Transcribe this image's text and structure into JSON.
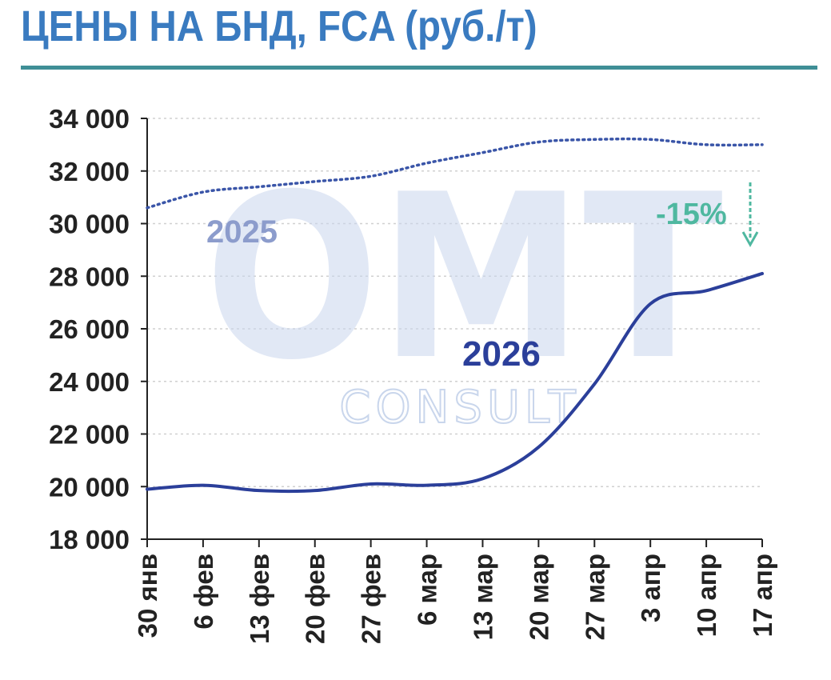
{
  "title": "ЦЕНЫ НА БНД, FCA (руб./т)",
  "watermark": {
    "main": "OMT",
    "sub": "CONSULT"
  },
  "colors": {
    "title": "#3a7bc0",
    "rule": "#3f8f96",
    "series_2025": "#3a55a8",
    "series_2026": "#2b3f9a",
    "label_2025": "#8c9ccc",
    "label_2026": "#2b3f9a",
    "annotation": "#4fb8a0",
    "axis": "#222222",
    "grid": "#d0d0d0"
  },
  "chart_data": {
    "type": "line",
    "categories": [
      "30 янв",
      "6 фев",
      "13 фев",
      "20 фев",
      "27 фев",
      "6 мар",
      "13 мар",
      "20 мар",
      "27 мар",
      "3 апр",
      "10 апр",
      "17 апр"
    ],
    "yticks": [
      "18 000",
      "20 000",
      "22 000",
      "24 000",
      "26 000",
      "28 000",
      "30 000",
      "32 000",
      "34 000"
    ],
    "ylim": [
      18000,
      34000
    ],
    "grid": true,
    "series": [
      {
        "name": "2025",
        "style": "dotted",
        "values": [
          30600,
          31200,
          31400,
          31600,
          31800,
          32300,
          32700,
          33100,
          33200,
          33200,
          33000,
          33000
        ]
      },
      {
        "name": "2026",
        "style": "solid",
        "values": [
          19900,
          20050,
          19850,
          19850,
          20100,
          20050,
          20300,
          21500,
          23900,
          26950,
          27450,
          28100
        ]
      }
    ],
    "annotation": {
      "text": "-15%",
      "x": "17 апр"
    }
  }
}
